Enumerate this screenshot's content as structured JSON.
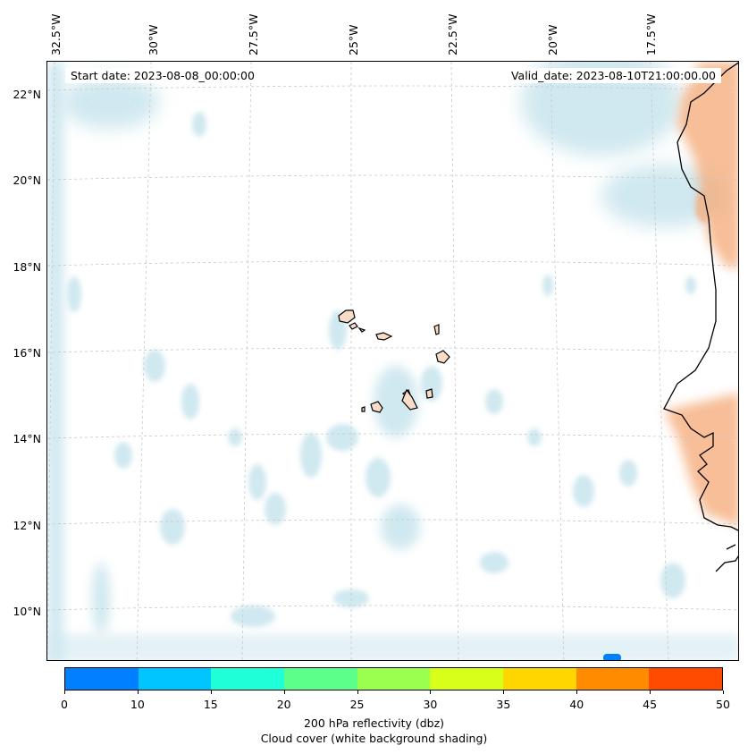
{
  "header": {
    "start_date": "Start date: 2023-08-08_00:00:00",
    "valid_date": "Valid_date: 2023-08-10T21:00:00.00"
  },
  "lon_labels": [
    "32.5°W",
    "30°W",
    "27.5°W",
    "25°W",
    "22.5°W",
    "20°W",
    "17.5°W"
  ],
  "lat_labels": [
    "22°N",
    "20°N",
    "18°N",
    "16°N",
    "14°N",
    "12°N",
    "10°N"
  ],
  "colorbar": {
    "colors": [
      "#0080ff",
      "#00c5ff",
      "#1fffd8",
      "#5cff8a",
      "#9bff50",
      "#d8ff1a",
      "#ffd600",
      "#ff8c00",
      "#ff4a00"
    ],
    "ticks": [
      "0",
      "10",
      "15",
      "20",
      "25",
      "30",
      "35",
      "40",
      "45",
      "50"
    ],
    "label_line1": "200 hPa reflectivity (dbz)",
    "label_line2": "Cloud cover (white background shading)"
  },
  "styles": {
    "cloud_color": "#a9d6e3",
    "warm_color": "#f4a874",
    "coast_color": "#000000",
    "island_fill": "#f8dcc8"
  }
}
